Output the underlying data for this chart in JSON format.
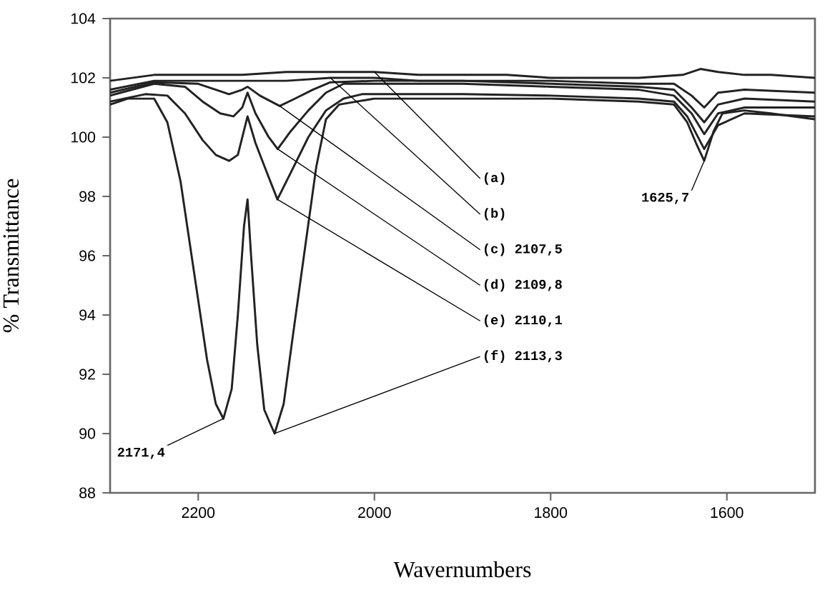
{
  "chart_data": {
    "type": "line",
    "xlabel": "Wavernumbers",
    "ylabel": "% Transmittance",
    "xlim": [
      2300,
      1500
    ],
    "xticks": [
      2200,
      2000,
      1800,
      1600
    ],
    "ylim": [
      88,
      104
    ],
    "yticks": [
      88,
      90,
      92,
      94,
      96,
      98,
      100,
      102,
      104
    ],
    "grid": false,
    "marker": "none",
    "line_style": "solid",
    "series": [
      {
        "color": "#222222",
        "x": [
          2300,
          2250,
          2200,
          2150,
          2100,
          2050,
          2000,
          1950,
          1900,
          1850,
          1800,
          1750,
          1700,
          1650,
          1630,
          1610,
          1580,
          1550,
          1500
        ],
        "values": [
          101.9,
          102.1,
          102.1,
          102.1,
          102.2,
          102.2,
          102.2,
          102.1,
          102.1,
          102.1,
          102.0,
          102.0,
          102.0,
          102.1,
          102.3,
          102.2,
          102.1,
          102.1,
          102.0
        ]
      },
      {
        "color": "#222222",
        "x": [
          2300,
          2250,
          2200,
          2150,
          2100,
          2050,
          2000,
          1950,
          1900,
          1800,
          1700,
          1660,
          1640,
          1625.7,
          1610,
          1580,
          1500
        ],
        "values": [
          101.6,
          101.9,
          101.9,
          101.9,
          101.9,
          102.0,
          102.0,
          101.9,
          101.9,
          101.9,
          101.8,
          101.8,
          101.4,
          101.0,
          101.5,
          101.6,
          101.5
        ]
      },
      {
        "color": "#222222",
        "x": [
          2300,
          2250,
          2200,
          2180,
          2165,
          2150,
          2144,
          2130,
          2107.5,
          2090,
          2070,
          2050,
          2000,
          1900,
          1800,
          1700,
          1660,
          1640,
          1625.7,
          1610,
          1580,
          1500
        ],
        "values": [
          101.5,
          101.85,
          101.8,
          101.6,
          101.45,
          101.6,
          101.7,
          101.4,
          101.05,
          101.3,
          101.6,
          101.85,
          101.9,
          101.9,
          101.8,
          101.7,
          101.6,
          101.0,
          100.5,
          101.1,
          101.3,
          101.2
        ]
      },
      {
        "color": "#222222",
        "x": [
          2300,
          2250,
          2215,
          2195,
          2175,
          2160,
          2150,
          2144,
          2135,
          2120,
          2109.8,
          2095,
          2075,
          2055,
          2035,
          2000,
          1900,
          1800,
          1700,
          1660,
          1640,
          1625.7,
          1610,
          1580,
          1500
        ],
        "values": [
          101.4,
          101.8,
          101.7,
          101.2,
          100.8,
          100.7,
          101.0,
          101.5,
          100.8,
          100.0,
          99.6,
          100.2,
          100.9,
          101.5,
          101.8,
          101.8,
          101.8,
          101.7,
          101.6,
          101.4,
          100.8,
          100.1,
          100.8,
          101.0,
          101.0
        ]
      },
      {
        "color": "#222222",
        "x": [
          2300,
          2260,
          2235,
          2215,
          2195,
          2180,
          2165,
          2155,
          2144,
          2135,
          2122,
          2110.1,
          2095,
          2075,
          2055,
          2035,
          2014,
          1900,
          1800,
          1700,
          1660,
          1645,
          1625.7,
          1610,
          1580,
          1500
        ],
        "values": [
          101.2,
          101.45,
          101.4,
          100.8,
          99.9,
          99.4,
          99.2,
          99.4,
          100.7,
          99.8,
          98.8,
          97.9,
          98.8,
          100.0,
          100.9,
          101.3,
          101.45,
          101.45,
          101.4,
          101.3,
          101.2,
          100.7,
          99.6,
          100.4,
          100.8,
          100.7
        ]
      },
      {
        "color": "#222222",
        "x": [
          2300,
          2280,
          2250,
          2235,
          2220,
          2205,
          2190,
          2180,
          2171.4,
          2162,
          2155,
          2148,
          2144,
          2140,
          2133,
          2125,
          2113.3,
          2103,
          2093,
          2080,
          2066,
          2055,
          2040,
          2000,
          1900,
          1800,
          1700,
          1660,
          1645,
          1635,
          1625.7,
          1615,
          1605,
          1580,
          1550,
          1500
        ],
        "values": [
          101.1,
          101.3,
          101.3,
          100.5,
          98.5,
          95.5,
          92.5,
          91.0,
          90.5,
          91.5,
          94.0,
          97.0,
          97.9,
          96.0,
          93.0,
          90.8,
          90.0,
          91.0,
          93.2,
          96.0,
          99.0,
          100.6,
          101.1,
          101.3,
          101.3,
          101.3,
          101.2,
          101.1,
          100.5,
          99.8,
          99.2,
          100.2,
          100.8,
          100.9,
          100.8,
          100.6
        ]
      }
    ],
    "annotations": [
      {
        "text": "(a)",
        "x": 2000,
        "y": 102.2
      },
      {
        "text": "(b)",
        "x": 2050,
        "y": 102.0
      },
      {
        "text": "(c) 2107,5",
        "x": 2107.5,
        "y": 101.05
      },
      {
        "text": "(d) 2109,8",
        "x": 2109.8,
        "y": 99.6
      },
      {
        "text": "(e) 2110,1",
        "x": 2110.1,
        "y": 97.9
      },
      {
        "text": "(f) 2113,3",
        "x": 2113.3,
        "y": 90.0
      },
      {
        "text": "2171,4",
        "x": 2171.4,
        "y": 90.5
      },
      {
        "text": "1625,7",
        "x": 1625.7,
        "y": 99.2
      }
    ]
  }
}
